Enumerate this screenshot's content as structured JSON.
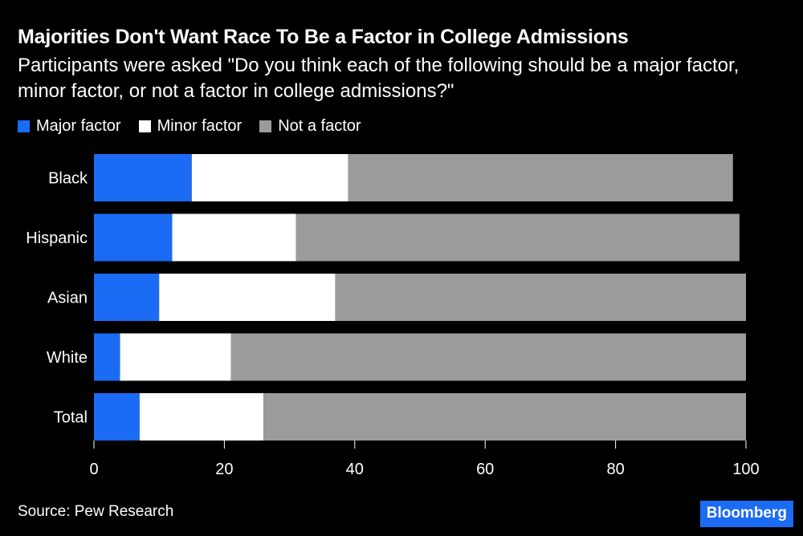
{
  "title": "Majorities Don't Want Race To Be a Factor in College Admissions",
  "subtitle": "Participants were asked \"Do you think each of the following should be a major factor, minor factor, or not a factor in college admissions?\"",
  "source": "Source: Pew Research",
  "brand": "Bloomberg",
  "colors": {
    "major": "#1c6bf5",
    "minor": "#ffffff",
    "not": "#9b9b9b",
    "background": "#000000",
    "text": "#ffffff"
  },
  "chart_data": {
    "type": "bar",
    "orientation": "horizontal",
    "stacked": true,
    "categories": [
      "Black",
      "Hispanic",
      "Asian",
      "White",
      "Total"
    ],
    "series": [
      {
        "name": "Major factor",
        "key": "major",
        "values": [
          15,
          12,
          10,
          4,
          7
        ]
      },
      {
        "name": "Minor factor",
        "key": "minor",
        "values": [
          24,
          19,
          27,
          17,
          19
        ]
      },
      {
        "name": "Not a factor",
        "key": "not",
        "values": [
          59,
          68,
          63,
          79,
          74
        ]
      }
    ],
    "xlim": [
      0,
      100
    ],
    "xticks": [
      0,
      20,
      40,
      60,
      80,
      100
    ],
    "legend_position": "top-left",
    "grid": false
  }
}
